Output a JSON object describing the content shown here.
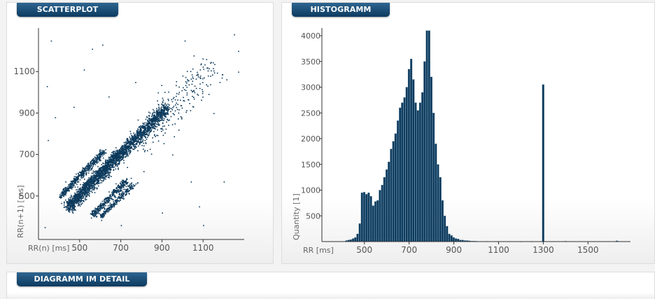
{
  "panels": {
    "scatter": {
      "title": "SCATTERPLOT"
    },
    "histogram": {
      "title": "HISTOGRAMM"
    },
    "detail": {
      "title": "DIAGRAMM IM DETAIL"
    }
  },
  "colors": {
    "mark": "#0d3a5c",
    "tab": "#144a73",
    "axis": "#333333"
  },
  "chart_data": [
    {
      "type": "scatter",
      "xlabel": "RR(n) [ms]",
      "ylabel": "RR(n+1) [ms]",
      "xlim": [
        300,
        1300
      ],
      "ylim": [
        290,
        1310
      ],
      "xticks": [
        500,
        700,
        900,
        1100
      ],
      "yticks": [
        500,
        700,
        900,
        1100
      ],
      "clusters": [
        {
          "from": [
            440,
            440
          ],
          "to": [
            920,
            930
          ],
          "width": 14,
          "count": 2200
        },
        {
          "from": [
            400,
            500
          ],
          "to": [
            620,
            720
          ],
          "width": 8,
          "count": 500
        },
        {
          "from": [
            450,
            470
          ],
          "to": [
            690,
            720
          ],
          "width": 8,
          "count": 450
        },
        {
          "from": [
            560,
            410
          ],
          "to": [
            730,
            580
          ],
          "width": 8,
          "count": 350
        },
        {
          "from": [
            600,
            400
          ],
          "to": [
            760,
            560
          ],
          "width": 6,
          "count": 250
        },
        {
          "from": [
            780,
            740
          ],
          "to": [
            1150,
            1140
          ],
          "width": 40,
          "count": 250
        }
      ],
      "outliers": [
        [
          330,
          350
        ],
        [
          345,
          770
        ],
        [
          360,
          1250
        ],
        [
          430,
          570
        ],
        [
          520,
          1110
        ],
        [
          560,
          1210
        ],
        [
          610,
          1230
        ],
        [
          640,
          980
        ],
        [
          700,
          360
        ],
        [
          730,
          640
        ],
        [
          770,
          1050
        ],
        [
          810,
          620
        ],
        [
          880,
          1000
        ],
        [
          950,
          700
        ],
        [
          980,
          820
        ],
        [
          1040,
          570
        ],
        [
          1080,
          450
        ],
        [
          1120,
          1120
        ],
        [
          1150,
          900
        ],
        [
          1200,
          570
        ],
        [
          1250,
          1280
        ],
        [
          1270,
          1200
        ],
        [
          1100,
          360
        ],
        [
          900,
          420
        ],
        [
          340,
          1030
        ],
        [
          380,
          880
        ],
        [
          470,
          930
        ],
        [
          1010,
          1250
        ],
        [
          1180,
          1050
        ],
        [
          1270,
          1100
        ]
      ]
    },
    {
      "type": "bar",
      "xlabel": "RR [ms]",
      "ylabel": "Quantity [1]",
      "xlim": [
        310,
        1690
      ],
      "ylim": [
        0,
        4150
      ],
      "xticks": [
        500,
        700,
        900,
        1100,
        1300,
        1500
      ],
      "yticks": [
        500,
        1000,
        1500,
        2000,
        2500,
        3000,
        3500,
        4000
      ],
      "bin_width": 10,
      "x": [
        420,
        430,
        440,
        450,
        460,
        470,
        480,
        490,
        500,
        510,
        520,
        530,
        540,
        550,
        560,
        570,
        580,
        590,
        600,
        610,
        620,
        630,
        640,
        650,
        660,
        670,
        680,
        690,
        700,
        710,
        720,
        730,
        740,
        750,
        760,
        770,
        780,
        790,
        800,
        810,
        820,
        830,
        840,
        850,
        860,
        870,
        880,
        890,
        900,
        910,
        920,
        930,
        940,
        950,
        960,
        970,
        980,
        990,
        1000,
        1050,
        1100,
        1150,
        1200,
        1250,
        1290,
        1300,
        1400,
        1630
      ],
      "values": [
        20,
        30,
        40,
        60,
        80,
        150,
        350,
        950,
        960,
        920,
        950,
        880,
        700,
        780,
        800,
        1000,
        1100,
        1250,
        1400,
        1550,
        1800,
        1950,
        2100,
        2350,
        2600,
        2700,
        2800,
        3000,
        3350,
        3550,
        3150,
        2700,
        2550,
        2700,
        2900,
        3500,
        4100,
        4100,
        3200,
        2500,
        1900,
        1500,
        1250,
        800,
        500,
        300,
        150,
        120,
        80,
        60,
        50,
        30,
        30,
        20,
        20,
        15,
        10,
        10,
        8,
        6,
        5,
        5,
        4,
        4,
        6,
        3050,
        8,
        15
      ]
    }
  ]
}
